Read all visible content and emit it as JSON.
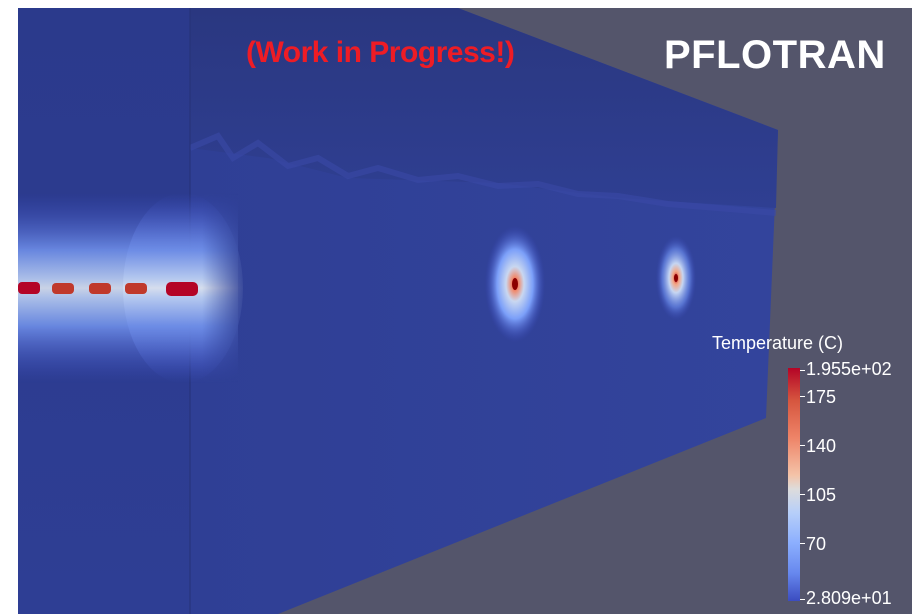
{
  "overlay": {
    "work_in_progress": "(Work in Progress!)",
    "brand": "PFLOTRAN"
  },
  "legend": {
    "title": "Temperature (C)",
    "max_label": "1.955e+02",
    "min_label": "2.809e+01",
    "tick_labels": [
      "175",
      "140",
      "105",
      "70"
    ],
    "colormap": "cool-to-warm"
  },
  "colors": {
    "background": "#54556b",
    "domain_face": "#2f3e8d",
    "hot": "#b40426",
    "cold": "#3b4cc0",
    "warning_text": "#ee1c25",
    "brand_text": "#ffffff"
  }
}
